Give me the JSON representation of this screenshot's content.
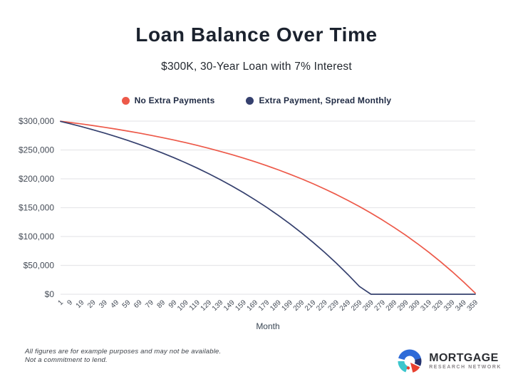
{
  "chart": {
    "title": "Loan Balance Over Time",
    "subtitle": "$300K, 30-Year Loan with 7% Interest"
  },
  "chart_data": {
    "type": "line",
    "title": "Loan Balance Over Time",
    "subtitle": "$300K, 30-Year Loan with 7% Interest",
    "xlabel": "Month",
    "ylabel": "",
    "xlim": [
      1,
      359
    ],
    "ylim": [
      0,
      300000
    ],
    "grid": "horizontal",
    "legend_position": "top-center",
    "x": [
      1,
      9,
      19,
      29,
      39,
      49,
      59,
      69,
      79,
      89,
      99,
      109,
      119,
      129,
      139,
      149,
      159,
      169,
      179,
      189,
      199,
      209,
      219,
      229,
      239,
      249,
      259,
      269,
      279,
      289,
      299,
      309,
      319,
      329,
      339,
      349,
      359
    ],
    "yticks": {
      "values": [
        300000,
        250000,
        200000,
        150000,
        100000,
        50000,
        0
      ],
      "labels": [
        "$300,000",
        "$250,000",
        "$200,000",
        "$150,000",
        "$100,000",
        "$50,000",
        "$0"
      ]
    },
    "series": [
      {
        "name": "No Extra Payments",
        "color": "#ed5949",
        "values": [
          299800,
          297700,
          295100,
          292300,
          289300,
          286100,
          282700,
          279200,
          275400,
          271400,
          267200,
          262700,
          257900,
          252900,
          247500,
          241900,
          235900,
          229500,
          222700,
          215600,
          208000,
          200000,
          191500,
          182400,
          172900,
          162700,
          152000,
          140600,
          128500,
          115700,
          102200,
          87800,
          72600,
          56400,
          39300,
          21200,
          2000
        ]
      },
      {
        "name": "Extra Payment, Spread Monthly",
        "color": "#35406e",
        "values": [
          299500,
          295600,
          290500,
          285000,
          279200,
          273100,
          266600,
          259700,
          252400,
          244700,
          236500,
          227800,
          218600,
          208800,
          198500,
          187500,
          175900,
          163500,
          150500,
          136600,
          122000,
          106400,
          89900,
          72500,
          54000,
          34300,
          13500,
          0,
          0,
          0,
          0,
          0,
          0,
          0,
          0,
          0,
          0
        ]
      }
    ]
  },
  "footer": {
    "line1": "All figures are for example purposes and may not be available.",
    "line2": "Not a commitment to lend."
  },
  "logo": {
    "name": "MORTGAGE",
    "tagline": "RESEARCH NETWORK"
  },
  "colors": {
    "grid": "#e7e7ea",
    "axis_text": "#454c57",
    "logo_blue": "#2e6bd8",
    "logo_navy": "#25336f",
    "logo_teal": "#3cc6cd",
    "logo_red": "#e8402f"
  }
}
